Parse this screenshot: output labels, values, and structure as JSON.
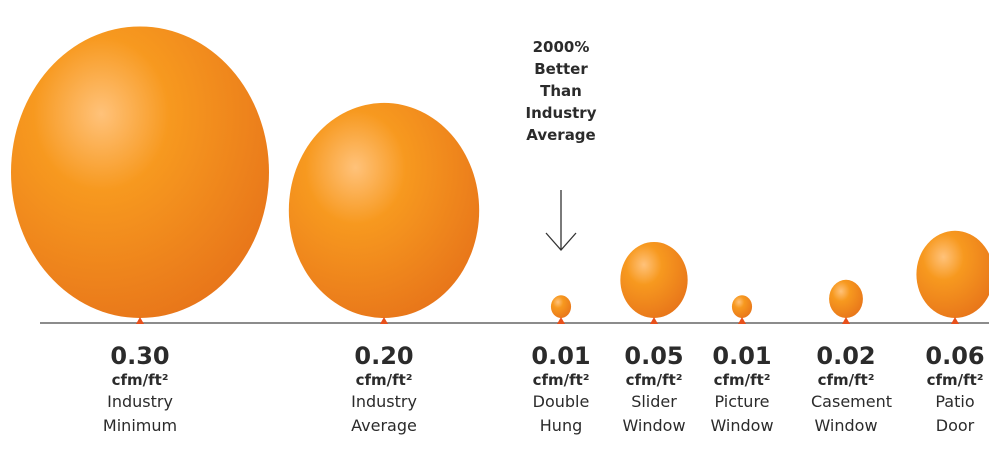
{
  "chart_data": {
    "type": "balloon",
    "categories": [
      "Industry Minimum",
      "Industry Average",
      "Double Hung",
      "Slider Window",
      "Picture Window",
      "Casement Window",
      "Patio Door"
    ],
    "values": [
      0.3,
      0.2,
      0.01,
      0.05,
      0.01,
      0.02,
      0.06
    ],
    "value_labels": [
      "0.30",
      "0.20",
      "0.01",
      "0.05",
      "0.01",
      "0.02",
      "0.06"
    ],
    "unit": "cfm/ft²",
    "color": "#f39221",
    "annotation": "2000% Better Than Industry Average"
  }
}
